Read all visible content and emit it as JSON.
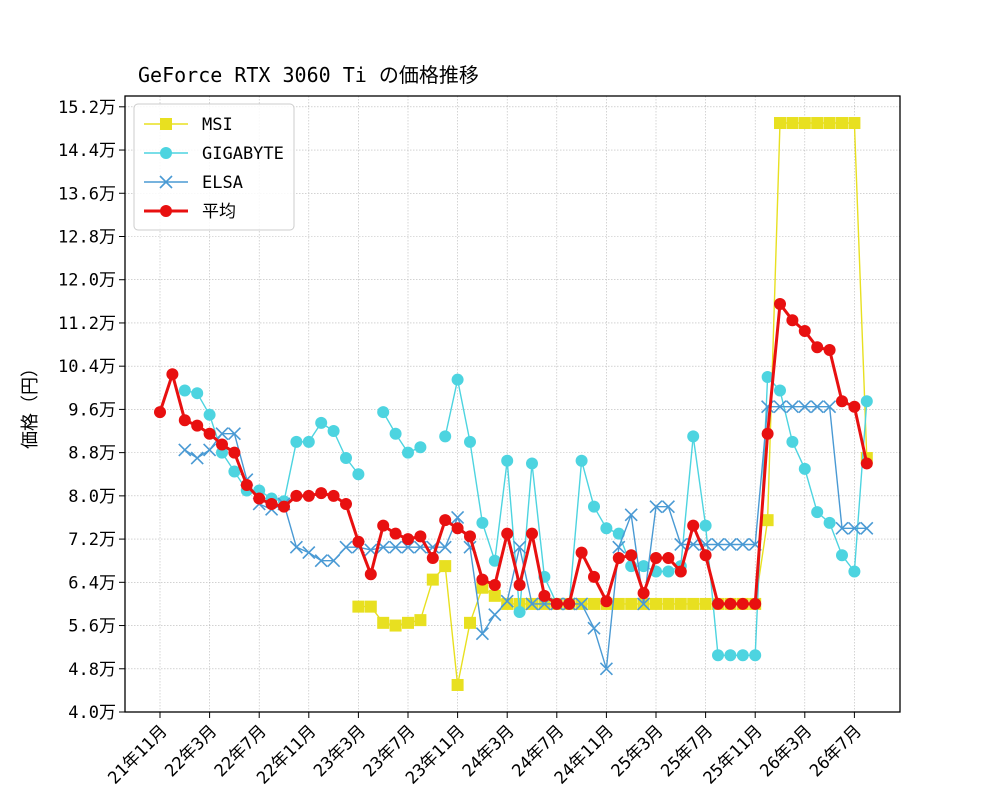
{
  "chart_data": {
    "type": "line",
    "title": "GeForce RTX 3060 Ti の価格推移",
    "ylabel": "価格（円）",
    "xlabel": "",
    "ylim": [
      40000,
      154000
    ],
    "ytick_values": [
      40000,
      48000,
      56000,
      64000,
      72000,
      80000,
      88000,
      96000,
      104000,
      112000,
      120000,
      128000,
      136000,
      144000,
      152000
    ],
    "ytick_labels": [
      "4.0万",
      "4.8万",
      "5.6万",
      "6.4万",
      "7.2万",
      "8.0万",
      "8.8万",
      "9.6万",
      "10.4万",
      "11.2万",
      "12.0万",
      "12.8万",
      "13.6万",
      "14.4万",
      "15.2万"
    ],
    "xtick_labels": [
      "21年11月",
      "22年3月",
      "22年7月",
      "22年11月",
      "23年3月",
      "23年7月",
      "23年11月",
      "24年3月",
      "24年7月",
      "24年11月",
      "25年3月",
      "25年7月",
      "25年11月",
      "26年3月",
      "26年7月"
    ],
    "x_months": [
      "21年11月",
      "21年12月",
      "22年1月",
      "22年2月",
      "22年3月",
      "22年4月",
      "22年5月",
      "22年6月",
      "22年7月",
      "22年8月",
      "22年9月",
      "22年10月",
      "22年11月",
      "22年12月",
      "23年1月",
      "23年2月",
      "23年3月",
      "23年4月",
      "23年5月",
      "23年6月",
      "23年7月",
      "23年8月",
      "23年9月",
      "23年10月",
      "23年11月",
      "23年12月",
      "24年1月",
      "24年2月",
      "24年3月",
      "24年4月",
      "24年5月",
      "24年6月",
      "24年7月",
      "24年8月",
      "24年9月",
      "24年10月",
      "24年11月",
      "24年12月",
      "25年1月",
      "25年2月",
      "25年3月",
      "25年4月",
      "25年5月",
      "25年6月",
      "25年7月",
      "25年8月",
      "25年9月",
      "25年10月",
      "25年11月",
      "25年12月",
      "26年1月",
      "26年2月",
      "26年3月",
      "26年4月",
      "26年5月",
      "26年6月",
      "26年7月",
      "26年8月"
    ],
    "grid": true,
    "legend_position": "top-left",
    "series": [
      {
        "name": "MSI",
        "color": "#e8e020",
        "marker": "square",
        "values": [
          null,
          null,
          null,
          null,
          null,
          null,
          null,
          null,
          null,
          null,
          null,
          null,
          null,
          null,
          null,
          null,
          59500,
          59500,
          56500,
          56000,
          56500,
          57000,
          64500,
          67000,
          45000,
          56500,
          63000,
          61500,
          60000,
          60000,
          60000,
          60000,
          60000,
          60000,
          60000,
          60000,
          60000,
          60000,
          60000,
          60000,
          60000,
          60000,
          60000,
          60000,
          60000,
          60000,
          60000,
          60000,
          60000,
          75500,
          149000,
          149000,
          149000,
          149000,
          149000,
          149000,
          149000,
          87000
        ]
      },
      {
        "name": "GIGABYTE",
        "color": "#4dd4e0",
        "marker": "circle",
        "values": [
          null,
          null,
          99500,
          99000,
          95000,
          88000,
          84500,
          81000,
          81000,
          79500,
          79000,
          90000,
          90000,
          93500,
          92000,
          87000,
          84000,
          null,
          95500,
          91500,
          88000,
          89000,
          null,
          91000,
          101500,
          90000,
          75000,
          68000,
          86500,
          58500,
          86000,
          65000,
          60000,
          60000,
          86500,
          78000,
          74000,
          73000,
          67000,
          67000,
          66000,
          66000,
          67000,
          91000,
          74500,
          50500,
          50500,
          50500,
          50500,
          102000,
          99500,
          90000,
          85000,
          77000,
          75000,
          69000,
          66000,
          97500
        ]
      },
      {
        "name": "ELSA",
        "color": "#4a9ad4",
        "marker": "x",
        "values": [
          null,
          null,
          88500,
          87000,
          88500,
          91500,
          91500,
          83000,
          78500,
          77500,
          78500,
          70500,
          69500,
          68000,
          68000,
          70500,
          70500,
          70000,
          70500,
          70500,
          70500,
          70500,
          70500,
          70500,
          76000,
          70500,
          54500,
          58000,
          60500,
          70500,
          60000,
          60000,
          60000,
          60000,
          60000,
          55500,
          48000,
          70500,
          76500,
          60000,
          78000,
          78000,
          71000,
          71000,
          71000,
          71000,
          71000,
          71000,
          71000,
          96500,
          96500,
          96500,
          96500,
          96500,
          96500,
          74000,
          74000,
          74000
        ]
      },
      {
        "name": "平均",
        "color": "#e81010",
        "marker": "circle",
        "values": [
          95500,
          102500,
          94000,
          93000,
          91500,
          89500,
          88000,
          82000,
          79500,
          78500,
          78000,
          80000,
          80000,
          80500,
          80000,
          78500,
          71500,
          65500,
          74500,
          73000,
          72000,
          72500,
          68500,
          75500,
          74000,
          72500,
          64500,
          63500,
          73000,
          63500,
          73000,
          61500,
          60000,
          60000,
          69500,
          65000,
          60500,
          68500,
          69000,
          62000,
          68500,
          68500,
          66000,
          74500,
          69000,
          60000,
          60000,
          60000,
          60000,
          91500,
          115500,
          112500,
          110500,
          107500,
          107000,
          97500,
          96500,
          86000
        ]
      }
    ]
  }
}
